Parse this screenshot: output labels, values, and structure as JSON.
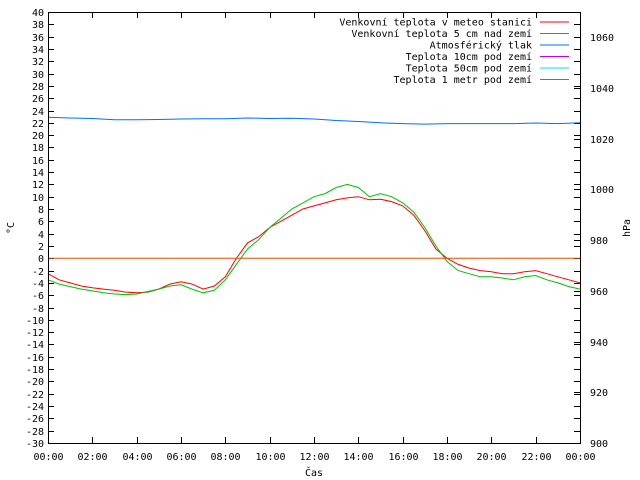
{
  "chart_data": {
    "type": "line",
    "xlabel": "Čas",
    "ylabel_left": "°C",
    "ylabel_right": "hPa",
    "x_ticks": [
      "00:00",
      "02:00",
      "04:00",
      "06:00",
      "08:00",
      "10:00",
      "12:00",
      "14:00",
      "16:00",
      "18:00",
      "20:00",
      "22:00",
      "00:00"
    ],
    "xlim_hours": [
      0,
      24
    ],
    "ylim_left": [
      -30,
      40
    ],
    "ylim_right": [
      900,
      1070
    ],
    "y_ticks_left": [
      40,
      38,
      36,
      34,
      32,
      30,
      28,
      26,
      24,
      22,
      20,
      18,
      16,
      14,
      12,
      10,
      8,
      6,
      4,
      2,
      0,
      -2,
      -4,
      -6,
      -8,
      -10,
      -12,
      -14,
      -16,
      -18,
      -20,
      -22,
      -24,
      -26,
      -28,
      -30
    ],
    "y_ticks_right": [
      1060,
      1040,
      1020,
      1000,
      980,
      960,
      940,
      920,
      900
    ],
    "legend_position": "top-right",
    "grid": false,
    "series": [
      {
        "name": "Venkovní teplota v meteo stanici",
        "color": "#ff0000",
        "axis": "left",
        "hours": [
          0,
          0.5,
          1,
          1.5,
          2,
          2.5,
          3,
          3.5,
          4,
          4.5,
          5,
          5.5,
          6,
          6.5,
          7,
          7.5,
          8,
          8.5,
          9,
          9.5,
          10,
          10.5,
          11,
          11.5,
          12,
          12.5,
          13,
          13.5,
          14,
          14.5,
          15,
          15.5,
          16,
          16.5,
          17,
          17.5,
          18,
          18.5,
          19,
          19.5,
          20,
          20.5,
          21,
          21.5,
          22,
          22.5,
          23,
          23.5,
          24
        ],
        "values": [
          -2.5,
          -3.5,
          -4,
          -4.5,
          -4.8,
          -5,
          -5.2,
          -5.5,
          -5.6,
          -5.5,
          -5,
          -4.2,
          -3.8,
          -4.2,
          -5,
          -4.5,
          -3,
          0,
          2.5,
          3.5,
          5,
          6,
          7,
          8,
          8.5,
          9,
          9.5,
          9.8,
          10,
          9.5,
          9.6,
          9.2,
          8.5,
          7,
          4.5,
          1.5,
          0,
          -1,
          -1.6,
          -2,
          -2.2,
          -2.5,
          -2.5,
          -2.2,
          -2,
          -2.5,
          -3,
          -3.5,
          -4
        ]
      },
      {
        "name": "Venkovní teplota 5 cm nad zemí",
        "color": "#00c000",
        "axis": "left",
        "hours": [
          0,
          0.5,
          1,
          1.5,
          2,
          2.5,
          3,
          3.5,
          4,
          4.5,
          5,
          5.5,
          6,
          6.5,
          7,
          7.5,
          8,
          8.5,
          9,
          9.5,
          10,
          10.5,
          11,
          11.5,
          12,
          12.5,
          13,
          13.5,
          14,
          14.5,
          15,
          15.5,
          16,
          16.5,
          17,
          17.5,
          18,
          18.5,
          19,
          19.5,
          20,
          20.5,
          21,
          21.5,
          22,
          22.5,
          23,
          23.5,
          24
        ],
        "values": [
          -3.5,
          -4.2,
          -4.6,
          -5,
          -5.3,
          -5.6,
          -5.8,
          -5.9,
          -5.8,
          -5.4,
          -5,
          -4.5,
          -4.3,
          -5,
          -5.6,
          -5.2,
          -3.5,
          -1,
          1.5,
          3,
          5,
          6.5,
          8,
          9,
          10,
          10.5,
          11.5,
          12,
          11.5,
          10,
          10.5,
          10,
          9,
          7.5,
          5,
          2,
          -0.5,
          -2,
          -2.5,
          -3,
          -3,
          -3.2,
          -3.5,
          -3,
          -2.8,
          -3.5,
          -4,
          -4.6,
          -5
        ]
      },
      {
        "name": "Atmosférický tlak",
        "color": "#0070ff",
        "axis": "right",
        "hours": [
          0,
          1,
          2,
          3,
          4,
          5,
          6,
          7,
          8,
          9,
          10,
          11,
          12,
          13,
          14,
          15,
          16,
          17,
          18,
          19,
          20,
          21,
          22,
          23,
          24
        ],
        "values": [
          1028.5,
          1028.2,
          1028,
          1027.5,
          1027.5,
          1027.6,
          1027.8,
          1027.9,
          1027.9,
          1028.2,
          1028,
          1028.1,
          1027.8,
          1027.2,
          1026.8,
          1026.3,
          1026,
          1025.8,
          1026,
          1026,
          1026,
          1026,
          1026.2,
          1026,
          1026.3
        ]
      },
      {
        "name": "Teplota 10cm pod zemí",
        "color": "#c000ff",
        "axis": "left",
        "hours": [],
        "values": []
      },
      {
        "name": "Teplota 50cm pod zemí",
        "color": "#00e0e0",
        "axis": "left",
        "hours": [],
        "values": []
      },
      {
        "name": "Teplota 1 metr pod zemí",
        "color": "#e05000",
        "axis": "left",
        "hours": [
          0,
          24
        ],
        "values": [
          0,
          0
        ]
      }
    ]
  }
}
